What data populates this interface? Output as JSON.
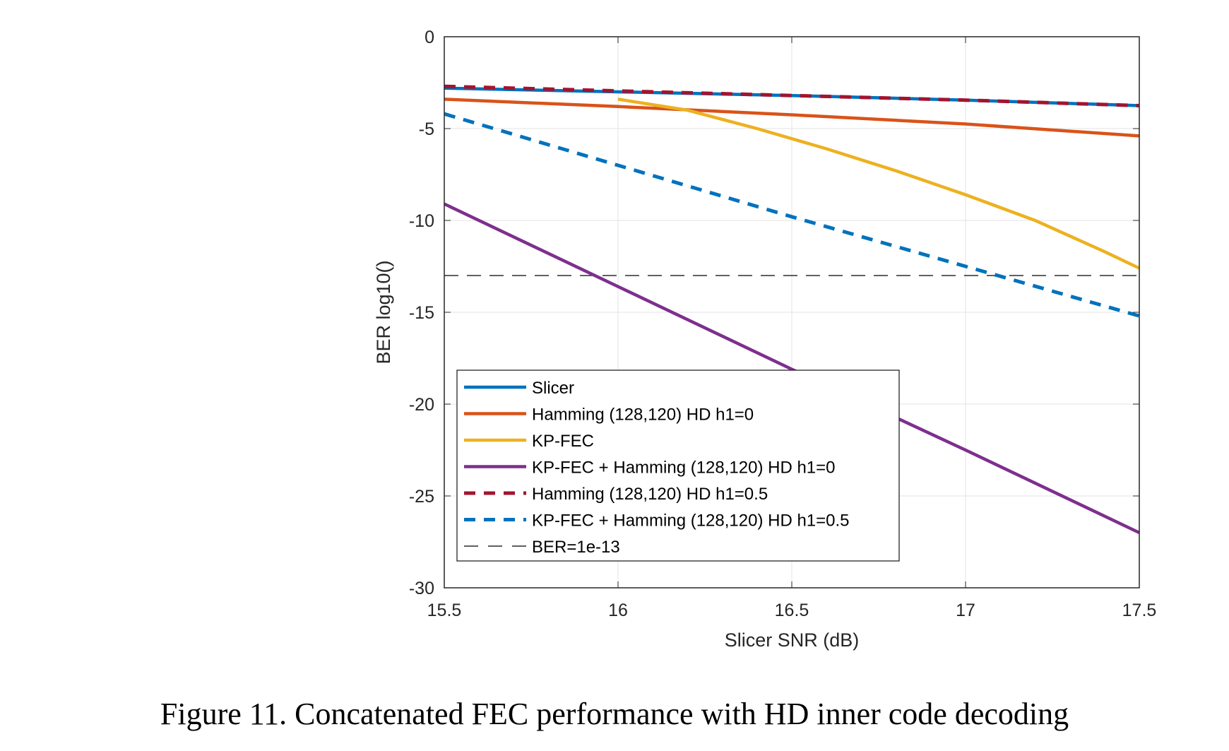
{
  "chart_data": {
    "type": "line",
    "title": "",
    "xlabel": "Slicer SNR (dB)",
    "ylabel": "BER log10()",
    "xlim": [
      15.5,
      17.5
    ],
    "ylim": [
      -30,
      0
    ],
    "xticks": [
      15.5,
      16,
      16.5,
      17,
      17.5
    ],
    "xtick_labels": [
      "15.5",
      "16",
      "16.5",
      "17",
      "17.5"
    ],
    "yticks": [
      0,
      -5,
      -10,
      -15,
      -20,
      -25,
      -30
    ],
    "ytick_labels": [
      "0",
      "-5",
      "-10",
      "-15",
      "-20",
      "-25",
      "-30"
    ],
    "grid": true,
    "legend_position": "bottom-left",
    "series": [
      {
        "name": "Slicer",
        "color": "#0072BD",
        "style": "solid",
        "x": [
          15.5,
          16,
          16.5,
          17,
          17.5
        ],
        "y": [
          -2.8,
          -3.0,
          -3.2,
          -3.45,
          -3.75
        ]
      },
      {
        "name": "Hamming (128,120) HD h1=0",
        "color": "#D95319",
        "style": "solid",
        "x": [
          15.5,
          16,
          16.5,
          17,
          17.5
        ],
        "y": [
          -3.4,
          -3.8,
          -4.25,
          -4.75,
          -5.4
        ]
      },
      {
        "name": "KP-FEC",
        "color": "#EDB120",
        "style": "solid",
        "x": [
          16,
          16.2,
          16.4,
          16.6,
          16.8,
          17,
          17.2,
          17.4,
          17.5
        ],
        "y": [
          -3.4,
          -4.0,
          -5.0,
          -6.1,
          -7.3,
          -8.6,
          -10.0,
          -11.7,
          -12.6
        ]
      },
      {
        "name": "KP-FEC + Hamming (128,120) HD h1=0",
        "color": "#7E2F8E",
        "style": "solid",
        "x": [
          15.5,
          16,
          16.5,
          17,
          17.5
        ],
        "y": [
          -9.1,
          -13.6,
          -18.1,
          -22.5,
          -27.0
        ]
      },
      {
        "name": "Hamming (128,120) HD h1=0.5",
        "color": "#A2142F",
        "style": "dashed",
        "x": [
          15.5,
          16,
          16.5,
          17,
          17.5
        ],
        "y": [
          -2.7,
          -2.95,
          -3.2,
          -3.45,
          -3.75
        ]
      },
      {
        "name": "KP-FEC + Hamming (128,120) HD h1=0.5",
        "color": "#0072BD",
        "style": "dashed",
        "x": [
          15.5,
          16,
          16.5,
          17,
          17.5
        ],
        "y": [
          -4.2,
          -7.0,
          -9.8,
          -12.5,
          -15.2
        ]
      },
      {
        "name": "BER=1e-13",
        "color": "#000000",
        "style": "thin-dashed",
        "x": [
          15.5,
          17.5
        ],
        "y": [
          -13,
          -13
        ]
      }
    ]
  },
  "caption": "Figure 11. Concatenated FEC performance with HD inner code decoding"
}
